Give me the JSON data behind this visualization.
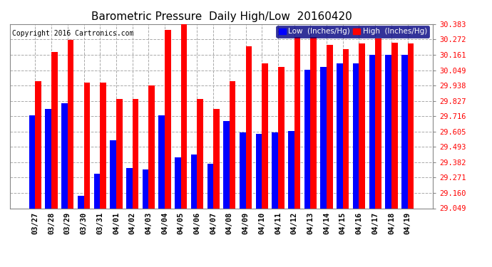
{
  "title": "Barometric Pressure  Daily High/Low  20160420",
  "copyright": "Copyright 2016 Cartronics.com",
  "categories": [
    "03/27",
    "03/28",
    "03/29",
    "03/30",
    "03/31",
    "04/01",
    "04/02",
    "04/03",
    "04/04",
    "04/05",
    "04/06",
    "04/07",
    "04/08",
    "04/09",
    "04/10",
    "04/11",
    "04/12",
    "04/13",
    "04/14",
    "04/15",
    "04/16",
    "04/17",
    "04/18",
    "04/19"
  ],
  "low_values": [
    29.72,
    29.77,
    29.81,
    29.14,
    29.3,
    29.54,
    29.34,
    29.33,
    29.72,
    29.42,
    29.44,
    29.37,
    29.68,
    29.6,
    29.59,
    29.6,
    29.61,
    30.05,
    30.07,
    30.1,
    30.1,
    30.16,
    30.16,
    30.16
  ],
  "high_values": [
    29.97,
    30.18,
    30.27,
    29.96,
    29.96,
    29.84,
    29.84,
    29.94,
    30.34,
    30.39,
    29.84,
    29.77,
    29.97,
    30.22,
    30.1,
    30.07,
    30.29,
    30.29,
    30.23,
    30.2,
    30.24,
    30.28,
    30.25,
    30.24
  ],
  "low_color": "#0000ff",
  "high_color": "#ff0000",
  "background_color": "#ffffff",
  "grid_color": "#aaaaaa",
  "title_fontsize": 11,
  "copyright_fontsize": 7,
  "ymin": 29.049,
  "ymax": 30.383,
  "yticks": [
    29.049,
    29.16,
    29.271,
    29.382,
    29.493,
    29.605,
    29.716,
    29.827,
    29.938,
    30.049,
    30.161,
    30.272,
    30.383
  ]
}
